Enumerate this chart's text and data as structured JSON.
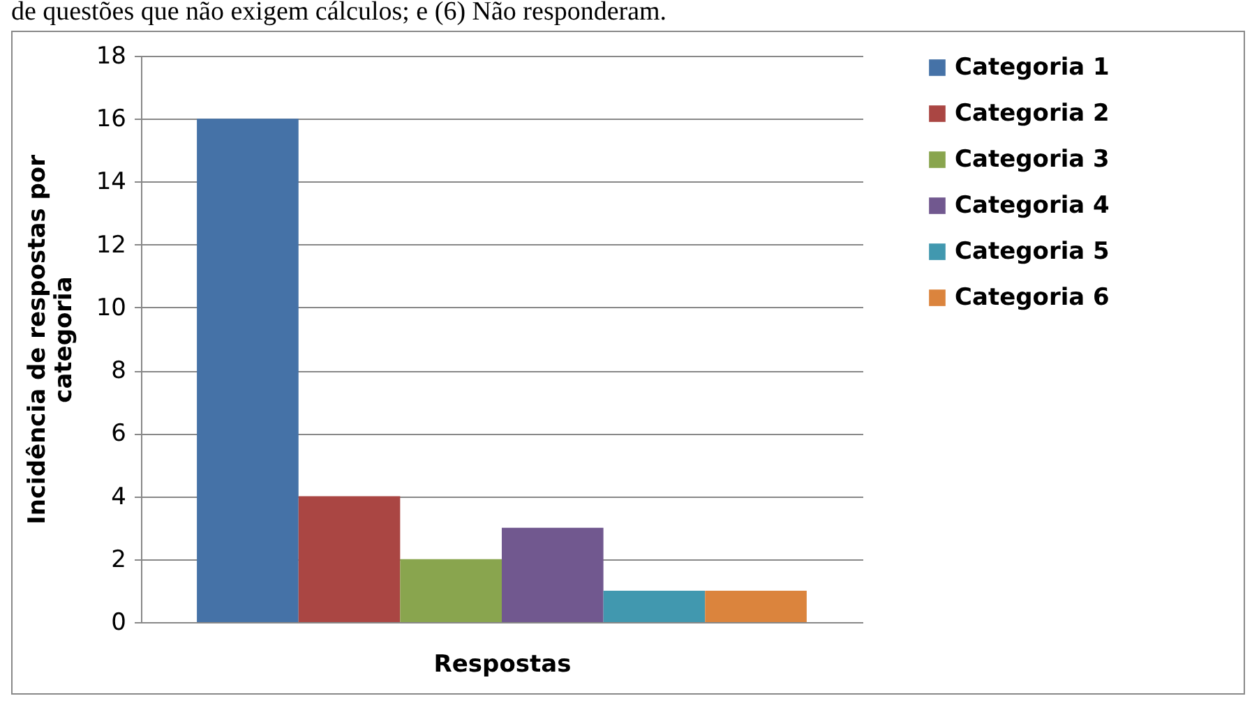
{
  "chart_data": {
    "type": "bar",
    "xlabel": "Respostas",
    "ylabel": "Incidência de respostas por categoria",
    "annotations": [
      "de questões que não exigem cálculos; e (6) Não responderam."
    ],
    "categories": [
      null
    ],
    "series": [
      {
        "name": "Categoria 1",
        "color": "#4572a7",
        "values": [
          16
        ]
      },
      {
        "name": "Categoria 2",
        "color": "#aa4643",
        "values": [
          4
        ]
      },
      {
        "name": "Categoria 3",
        "color": "#89a54e",
        "values": [
          2
        ]
      },
      {
        "name": "Categoria 4",
        "color": "#71588f",
        "values": [
          3
        ]
      },
      {
        "name": "Categoria 5",
        "color": "#4198af",
        "values": [
          1
        ]
      },
      {
        "name": "Categoria 6",
        "color": "#db843d",
        "values": [
          1
        ]
      }
    ],
    "ylim": [
      0,
      18
    ],
    "yticks": [
      0,
      2,
      4,
      6,
      8,
      10,
      12,
      14,
      16,
      18
    ],
    "grid": "y",
    "legend": "right"
  }
}
